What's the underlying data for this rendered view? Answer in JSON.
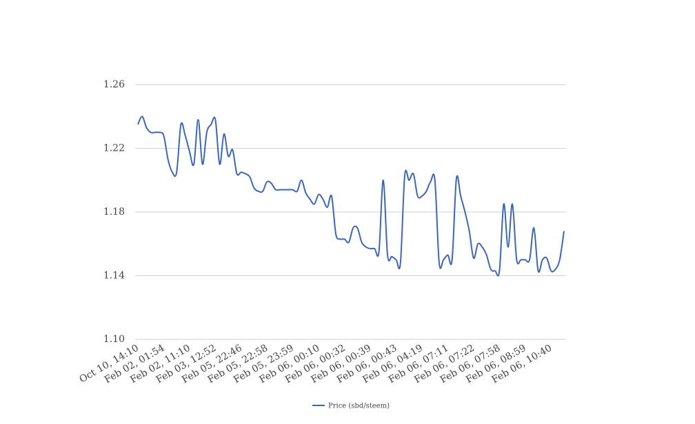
{
  "chart_data": {
    "type": "line",
    "categories": [
      "Oct 10, 14:10",
      null,
      null,
      null,
      null,
      null,
      "Feb 02, 01:54",
      null,
      null,
      null,
      null,
      null,
      "Feb 02, 11:10",
      null,
      null,
      null,
      null,
      null,
      "Feb 03, 12:52",
      null,
      null,
      null,
      null,
      null,
      "Feb 05, 22:46",
      null,
      null,
      null,
      null,
      null,
      "Feb 05, 22:58",
      null,
      null,
      null,
      null,
      null,
      "Feb 05, 23:59",
      null,
      null,
      null,
      null,
      null,
      "Feb 06, 00:10",
      null,
      null,
      null,
      null,
      null,
      "Feb 06, 00:32",
      null,
      null,
      null,
      null,
      null,
      "Feb 06, 00:39",
      null,
      null,
      null,
      null,
      null,
      "Feb 06, 00:43",
      null,
      null,
      null,
      null,
      null,
      "Feb 06, 04:19",
      null,
      null,
      null,
      null,
      null,
      "Feb 06, 07:11",
      null,
      null,
      null,
      null,
      null,
      "Feb 06, 07:22",
      null,
      null,
      null,
      null,
      null,
      "Feb 06, 07:58",
      null,
      null,
      null,
      null,
      null,
      "Feb 06, 08:59",
      null,
      null,
      null,
      null,
      null,
      "Feb 06, 10:40",
      null,
      null,
      null
    ],
    "series": [
      {
        "name": "Price (sbd/steem)",
        "color": "#3a66b5",
        "values": [
          1.235,
          1.24,
          1.233,
          1.23,
          1.23,
          1.23,
          1.228,
          1.213,
          1.205,
          1.205,
          1.235,
          1.228,
          1.218,
          1.21,
          1.238,
          1.21,
          1.23,
          1.235,
          1.238,
          1.21,
          1.229,
          1.215,
          1.219,
          1.204,
          1.205,
          1.204,
          1.202,
          1.195,
          1.193,
          1.193,
          1.199,
          1.198,
          1.194,
          1.194,
          1.194,
          1.194,
          1.194,
          1.193,
          1.2,
          1.192,
          1.188,
          1.185,
          1.191,
          1.188,
          1.183,
          1.19,
          1.166,
          1.163,
          1.163,
          1.161,
          1.17,
          1.17,
          1.161,
          1.158,
          1.157,
          1.157,
          1.155,
          1.2,
          1.153,
          1.152,
          1.15,
          1.148,
          1.203,
          1.2,
          1.204,
          1.19,
          1.19,
          1.193,
          1.199,
          1.2,
          1.148,
          1.15,
          1.153,
          1.15,
          1.201,
          1.19,
          1.18,
          1.168,
          1.151,
          1.16,
          1.158,
          1.153,
          1.144,
          1.143,
          1.143,
          1.185,
          1.158,
          1.185,
          1.15,
          1.15,
          1.15,
          1.15,
          1.17,
          1.143,
          1.15,
          1.151,
          1.143,
          1.144,
          1.15,
          1.168
        ]
      }
    ],
    "ylim": [
      1.1,
      1.26
    ],
    "yticks": [
      {
        "value": 1.1,
        "label": "1.10"
      },
      1.14,
      1.18,
      1.22,
      1.26
    ],
    "grid": true,
    "legend": "bottom"
  }
}
